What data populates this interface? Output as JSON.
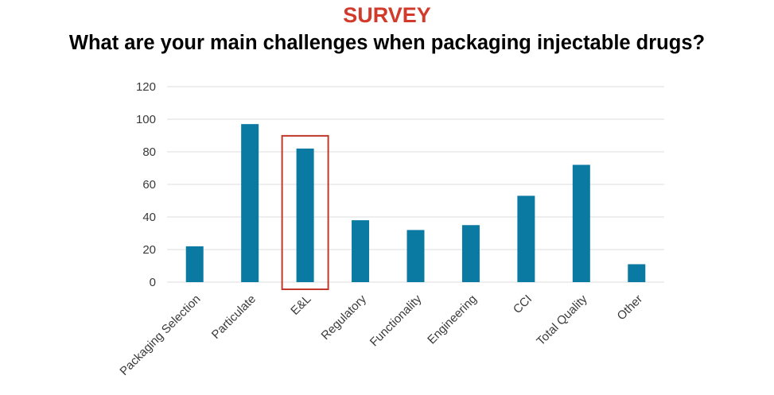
{
  "header": {
    "kicker": "SURVEY",
    "question": "What are your main challenges when packaging injectable drugs?"
  },
  "chart_data": {
    "type": "bar",
    "categories": [
      "Packaging Selection",
      "Particulate",
      "E&L",
      "Regulatory",
      "Functionality",
      "Engineering",
      "CCI",
      "Total Quality",
      "Other"
    ],
    "values": [
      22,
      97,
      82,
      38,
      32,
      35,
      53,
      72,
      11
    ],
    "ylim": [
      0,
      120
    ],
    "yticks": [
      0,
      20,
      40,
      60,
      80,
      100,
      120
    ],
    "grid": true,
    "legend": "none",
    "highlight_category": "E&L",
    "colors": {
      "bar": "#0a7aa3",
      "highlight": "#c0392b",
      "grid": "#dcdcdc"
    }
  }
}
